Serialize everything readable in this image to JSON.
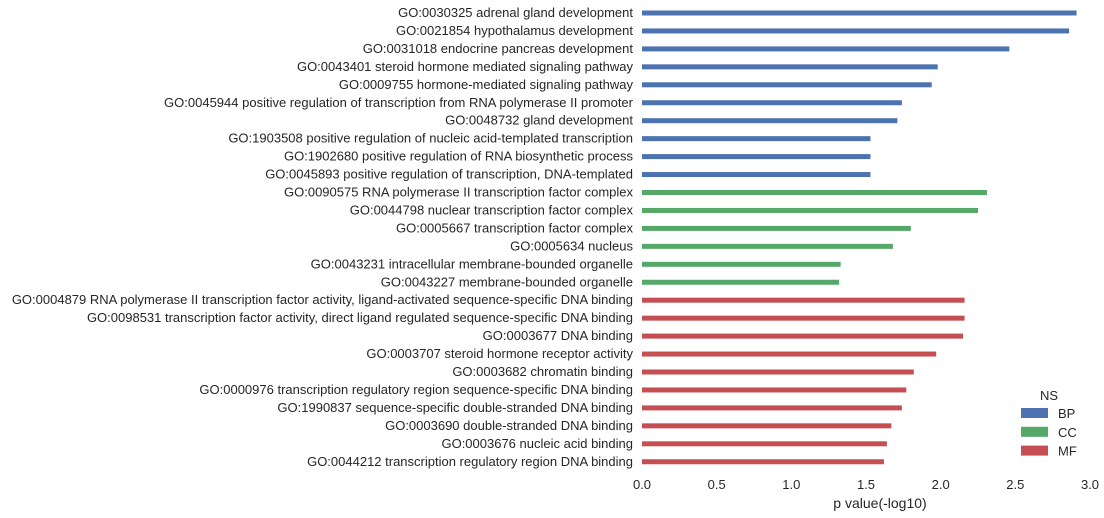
{
  "chart_data": {
    "type": "bar",
    "orientation": "horizontal",
    "grid": false,
    "legend_placement": "bottom-right",
    "xlabel": "p value(-log10)",
    "xlim": [
      0,
      3.0
    ],
    "x_ticks": [
      "0.0",
      "0.5",
      "1.0",
      "1.5",
      "2.0",
      "2.5",
      "3.0"
    ],
    "legend_title": "NS",
    "series": [
      {
        "name": "BP",
        "color": "#4c72b0"
      },
      {
        "name": "CC",
        "color": "#55a868"
      },
      {
        "name": "MF",
        "color": "#c44e52"
      }
    ],
    "categories": [
      "GO:0030325 adrenal gland development",
      "GO:0021854 hypothalamus development",
      "GO:0031018 endocrine pancreas development",
      "GO:0043401 steroid hormone mediated signaling pathway",
      "GO:0009755 hormone-mediated signaling pathway",
      "GO:0045944 positive regulation of transcription from RNA polymerase II promoter",
      "GO:0048732 gland development",
      "GO:1903508 positive regulation of nucleic acid-templated transcription",
      "GO:1902680 positive regulation of RNA biosynthetic process",
      "GO:0045893 positive regulation of transcription, DNA-templated",
      "GO:0090575 RNA polymerase II transcription factor complex",
      "GO:0044798 nuclear transcription factor complex",
      "GO:0005667 transcription factor complex",
      "GO:0005634 nucleus",
      "GO:0043231 intracellular membrane-bounded organelle",
      "GO:0043227 membrane-bounded organelle",
      "GO:0004879 RNA polymerase II transcription factor activity, ligand-activated sequence-specific DNA binding",
      "GO:0098531 transcription factor activity, direct ligand regulated sequence-specific DNA binding",
      "GO:0003677 DNA binding",
      "GO:0003707 steroid hormone receptor activity",
      "GO:0003682 chromatin binding",
      "GO:0000976 transcription regulatory region sequence-specific DNA binding",
      "GO:1990837 sequence-specific double-stranded DNA binding",
      "GO:0003690 double-stranded DNA binding",
      "GO:0003676 nucleic acid binding",
      "GO:0044212 transcription regulatory region DNA binding"
    ],
    "ns": [
      "BP",
      "BP",
      "BP",
      "BP",
      "BP",
      "BP",
      "BP",
      "BP",
      "BP",
      "BP",
      "CC",
      "CC",
      "CC",
      "CC",
      "CC",
      "CC",
      "MF",
      "MF",
      "MF",
      "MF",
      "MF",
      "MF",
      "MF",
      "MF",
      "MF",
      "MF"
    ],
    "values": [
      2.91,
      2.86,
      2.46,
      1.98,
      1.94,
      1.74,
      1.71,
      1.53,
      1.53,
      1.53,
      2.31,
      2.25,
      1.8,
      1.68,
      1.33,
      1.32,
      2.16,
      2.16,
      2.15,
      1.97,
      1.82,
      1.77,
      1.74,
      1.67,
      1.64,
      1.62
    ]
  }
}
